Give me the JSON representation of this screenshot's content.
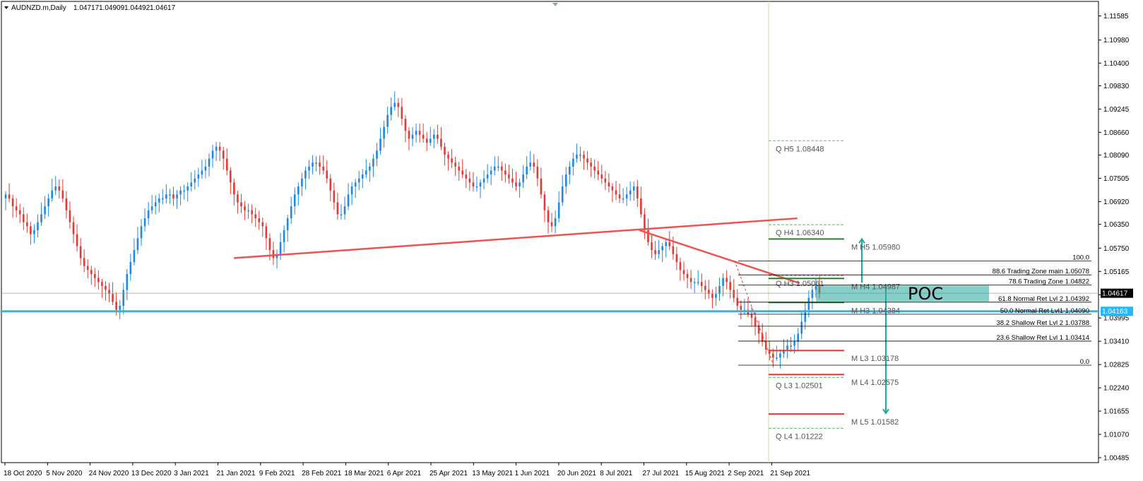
{
  "header": {
    "symbol": "AUDNZD.m,Daily",
    "open": "1.04717",
    "high": "1.04909",
    "low": "1.04492",
    "close": "1.04617"
  },
  "colors": {
    "bull": "#1e88e5",
    "bear": "#e53935",
    "trendline": "#ef5350",
    "support": "#29b6f6",
    "poc_zone": "#26a69a",
    "arrow": "#26a69a",
    "q_level": "#66bb6a",
    "m_level": "#2e7d32"
  },
  "chart_data": {
    "type": "candlestick",
    "y_range": [
      1.0036,
      1.1195
    ],
    "price_axis": [
      "1.11585",
      "1.10980",
      "1.10400",
      "1.09830",
      "1.09245",
      "1.08660",
      "1.08090",
      "1.07505",
      "1.06920",
      "1.06350",
      "1.05750",
      "1.05165",
      "1.04580",
      "1.03995",
      "1.03410",
      "1.02825",
      "1.02240",
      "1.01655",
      "1.01070",
      "1.00485"
    ],
    "date_labels": [
      "18 Oct 2020",
      "5 Nov 2020",
      "24 Nov 2020",
      "13 Dec 2020",
      "3 Jan 2021",
      "21 Jan 2021",
      "9 Feb 2021",
      "28 Feb 2021",
      "18 Mar 2021",
      "6 Apr 2021",
      "25 Apr 2021",
      "13 May 2021",
      "1 Jun 2021",
      "20 Jun 2021",
      "8 Jul 2021",
      "27 Jul 2021",
      "15 Aug 2021",
      "2 Sep 2021",
      "21 Sep 2021"
    ],
    "current_price": "1.04617",
    "support_price": "1.04163",
    "current_price_value": 1.04617,
    "support_price_value": 1.04163,
    "trendlines": [
      {
        "name": "rising-trendline",
        "from": [
          "2021-01-26",
          1.055
        ],
        "to": [
          "2021-09-29",
          1.065
        ]
      },
      {
        "name": "falling-trendline",
        "from": [
          "2021-07-22",
          1.062
        ],
        "to": [
          "2021-09-30",
          1.0487
        ]
      }
    ],
    "pivot_levels": [
      {
        "label": "Q  H5 1.08448",
        "value": 1.08448,
        "kind": "Q"
      },
      {
        "label": "Q  H4 1.06340",
        "value": 1.0634,
        "kind": "Q"
      },
      {
        "label": "M  H5 1.05980",
        "value": 1.0598,
        "kind": "M"
      },
      {
        "label": "Q  H3 1.05061",
        "value": 1.05061,
        "kind": "Q"
      },
      {
        "label": "M  H4 1.04987",
        "value": 1.04987,
        "kind": "M"
      },
      {
        "label": "M  H3 1.04384",
        "value": 1.04384,
        "kind": "M"
      },
      {
        "label": "M  L3 1.03178",
        "value": 1.03178,
        "kind": "M"
      },
      {
        "label": "Q  L3 1.02501",
        "value": 1.02501,
        "kind": "Q"
      },
      {
        "label": "M  L4 1.02575",
        "value": 1.02575,
        "kind": "M"
      },
      {
        "label": "M  L5 1.01582",
        "value": 1.01582,
        "kind": "M"
      },
      {
        "label": "Q  L4 1.01222",
        "value": 1.01222,
        "kind": "Q"
      }
    ],
    "fib_levels": [
      {
        "label": "100.0",
        "value": 1.0543
      },
      {
        "label": "88.6 Trading Zone main 1.05078",
        "value": 1.05078
      },
      {
        "label": "78.6 Trading Zone 1.04822",
        "value": 1.04822
      },
      {
        "label": "61.8 Normal Ret Lvl 2 1.04392",
        "value": 1.04392
      },
      {
        "label": "50.0 Normal Ret Lvl1 1.04090",
        "value": 1.0409
      },
      {
        "label": "38.2 Shallow Ret Lvl 2 1.03788",
        "value": 1.03788
      },
      {
        "label": "23.6 Shallow Ret Lvl 1 1.03414",
        "value": 1.03414
      },
      {
        "label": "0.0",
        "value": 1.0281
      }
    ],
    "poc_label": "POC",
    "poc_zone": [
      1.0441,
      1.0481
    ],
    "closes": [
      1.071,
      1.07,
      1.068,
      1.067,
      1.066,
      1.064,
      1.063,
      1.061,
      1.062,
      1.064,
      1.066,
      1.068,
      1.07,
      1.072,
      1.073,
      1.072,
      1.07,
      1.067,
      1.064,
      1.061,
      1.058,
      1.055,
      1.053,
      1.052,
      1.051,
      1.05,
      1.049,
      1.048,
      1.047,
      1.046,
      1.044,
      1.042,
      1.043,
      1.047,
      1.051,
      1.054,
      1.057,
      1.06,
      1.063,
      1.065,
      1.067,
      1.068,
      1.069,
      1.07,
      1.07,
      1.071,
      1.071,
      1.07,
      1.071,
      1.072,
      1.072,
      1.073,
      1.074,
      1.075,
      1.076,
      1.077,
      1.078,
      1.08,
      1.082,
      1.083,
      1.082,
      1.08,
      1.077,
      1.074,
      1.071,
      1.069,
      1.068,
      1.067,
      1.067,
      1.066,
      1.065,
      1.064,
      1.063,
      1.06,
      1.057,
      1.055,
      1.056,
      1.059,
      1.062,
      1.065,
      1.068,
      1.071,
      1.073,
      1.075,
      1.077,
      1.078,
      1.079,
      1.079,
      1.078,
      1.077,
      1.075,
      1.072,
      1.069,
      1.066,
      1.066,
      1.068,
      1.071,
      1.073,
      1.074,
      1.075,
      1.076,
      1.077,
      1.078,
      1.08,
      1.082,
      1.085,
      1.088,
      1.091,
      1.093,
      1.094,
      1.093,
      1.09,
      1.087,
      1.085,
      1.086,
      1.087,
      1.086,
      1.085,
      1.084,
      1.085,
      1.086,
      1.085,
      1.083,
      1.081,
      1.08,
      1.079,
      1.078,
      1.077,
      1.076,
      1.075,
      1.074,
      1.073,
      1.073,
      1.074,
      1.075,
      1.076,
      1.077,
      1.078,
      1.078,
      1.077,
      1.076,
      1.075,
      1.074,
      1.073,
      1.074,
      1.076,
      1.078,
      1.079,
      1.078,
      1.075,
      1.071,
      1.067,
      1.064,
      1.063,
      1.065,
      1.069,
      1.073,
      1.076,
      1.078,
      1.08,
      1.081,
      1.081,
      1.08,
      1.079,
      1.078,
      1.077,
      1.076,
      1.075,
      1.074,
      1.073,
      1.072,
      1.071,
      1.07,
      1.07,
      1.071,
      1.072,
      1.073,
      1.07,
      1.066,
      1.062,
      1.059,
      1.057,
      1.056,
      1.057,
      1.058,
      1.059,
      1.058,
      1.056,
      1.054,
      1.052,
      1.051,
      1.05,
      1.049,
      1.049,
      1.049,
      1.048,
      1.047,
      1.046,
      1.045,
      1.046,
      1.048,
      1.05,
      1.049,
      1.047,
      1.045,
      1.043,
      1.042,
      1.042,
      1.041,
      1.04,
      1.038,
      1.036,
      1.034,
      1.032,
      1.031,
      1.03,
      1.03,
      1.031,
      1.032,
      1.033,
      1.033,
      1.034,
      1.036,
      1.039,
      1.042,
      1.045,
      1.047,
      1.048,
      1.046
    ]
  }
}
